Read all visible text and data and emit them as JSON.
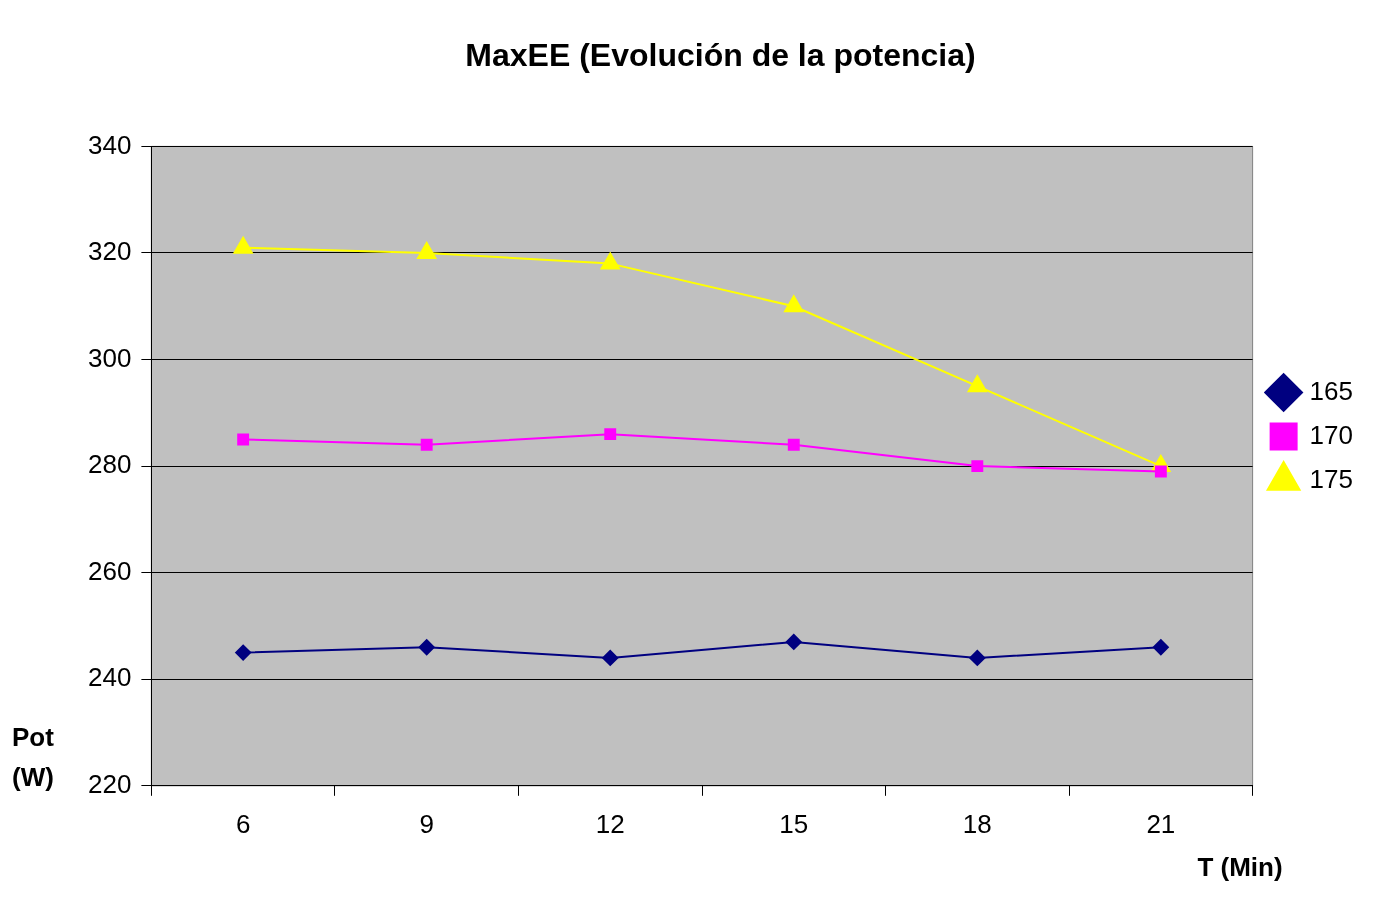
{
  "chart_data": {
    "type": "line",
    "title": "MaxEE (Evolución de la potencia)",
    "xlabel": "T (Min)",
    "ylabel": "Pot (W)",
    "categories": [
      "6",
      "9",
      "12",
      "15",
      "18",
      "21"
    ],
    "series": [
      {
        "name": "165",
        "color": "#000080",
        "marker": "diamond",
        "values": [
          245,
          246,
          244,
          247,
          244,
          246
        ]
      },
      {
        "name": "170",
        "color": "#ff00ff",
        "marker": "square",
        "values": [
          285,
          284,
          286,
          284,
          280,
          279
        ]
      },
      {
        "name": "175",
        "color": "#ffff00",
        "marker": "triangle",
        "values": [
          321,
          320,
          318,
          310,
          295,
          280
        ]
      }
    ],
    "ylim": [
      220,
      340
    ],
    "yticks": [
      220,
      240,
      260,
      280,
      300,
      320,
      340
    ],
    "grid": "y",
    "legend": "right"
  }
}
